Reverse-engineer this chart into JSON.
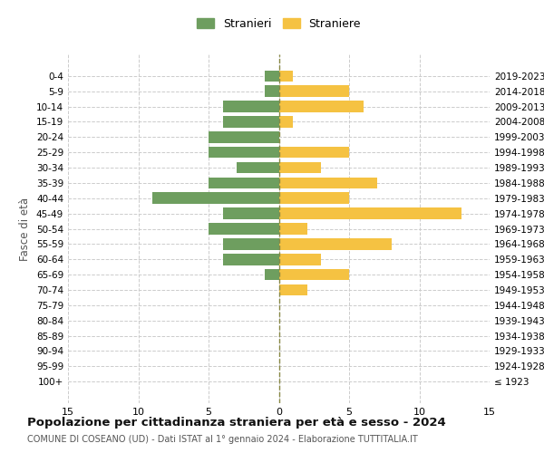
{
  "age_groups": [
    "100+",
    "95-99",
    "90-94",
    "85-89",
    "80-84",
    "75-79",
    "70-74",
    "65-69",
    "60-64",
    "55-59",
    "50-54",
    "45-49",
    "40-44",
    "35-39",
    "30-34",
    "25-29",
    "20-24",
    "15-19",
    "10-14",
    "5-9",
    "0-4"
  ],
  "birth_years": [
    "≤ 1923",
    "1924-1928",
    "1929-1933",
    "1934-1938",
    "1939-1943",
    "1944-1948",
    "1949-1953",
    "1954-1958",
    "1959-1963",
    "1964-1968",
    "1969-1973",
    "1974-1978",
    "1979-1983",
    "1984-1988",
    "1989-1993",
    "1994-1998",
    "1999-2003",
    "2004-2008",
    "2009-2013",
    "2014-2018",
    "2019-2023"
  ],
  "males": [
    0,
    0,
    0,
    0,
    0,
    0,
    0,
    1,
    4,
    4,
    5,
    4,
    9,
    5,
    3,
    5,
    5,
    4,
    4,
    1,
    1
  ],
  "females": [
    0,
    0,
    0,
    0,
    0,
    0,
    2,
    5,
    3,
    8,
    2,
    13,
    5,
    7,
    3,
    5,
    0,
    1,
    6,
    5,
    1
  ],
  "male_color": "#6e9e5f",
  "female_color": "#f5c242",
  "bg_color": "#ffffff",
  "grid_color": "#cccccc",
  "title": "Popolazione per cittadinanza straniera per età e sesso - 2024",
  "subtitle": "COMUNE DI COSEANO (UD) - Dati ISTAT al 1° gennaio 2024 - Elaborazione TUTTITALIA.IT",
  "ylabel_left": "Fasce di età",
  "legend_male": "Stranieri",
  "legend_female": "Straniere",
  "xlim": 15
}
